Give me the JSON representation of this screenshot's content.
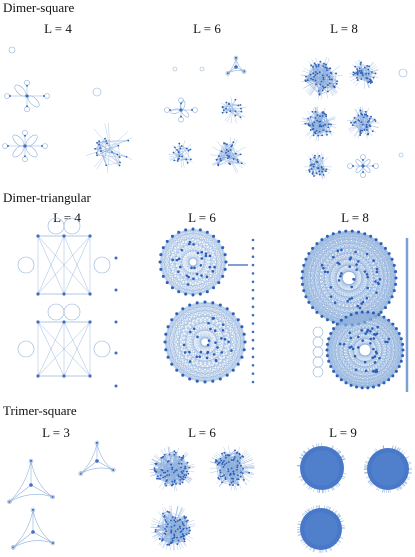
{
  "sections": [
    {
      "title": "Dimer-square",
      "columns": [
        "L = 4",
        "L = 6",
        "L = 8"
      ]
    },
    {
      "title": "Dimer-triangular",
      "columns": [
        "L = 4",
        "L = 6",
        "L = 8"
      ]
    },
    {
      "title": "Trimer-square",
      "columns": [
        "L = 3",
        "L = 6",
        "L = 9"
      ]
    }
  ],
  "colors": {
    "edge": "#8fb0dc",
    "node": "#3f6fc0",
    "dense": "#2c5fb8",
    "text": "#111111"
  }
}
